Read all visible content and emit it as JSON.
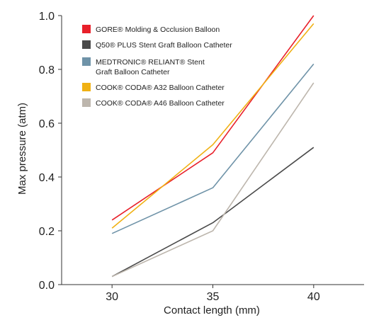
{
  "chart_data": {
    "type": "line",
    "title": "",
    "xlabel": "Contact length (mm)",
    "ylabel": "Max pressure (atm)",
    "x": [
      30,
      35,
      40
    ],
    "xlim": [
      27.5,
      42.5
    ],
    "ylim": [
      0,
      1.0
    ],
    "x_ticks": [
      "30",
      "35",
      "40"
    ],
    "y_ticks": [
      "0.0",
      "0.2",
      "0.4",
      "0.6",
      "0.8",
      "1.0"
    ],
    "grid": false,
    "legend_position": "top-left",
    "series": [
      {
        "name": "GORE® Molding & Occlusion Balloon",
        "legend_lines": [
          "GORE® Molding & Occlusion Balloon"
        ],
        "color": "#e8202a",
        "values": [
          0.24,
          0.49,
          1.0
        ]
      },
      {
        "name": "Q50® PLUS Stent Graft Balloon Catheter",
        "legend_lines": [
          "Q50® PLUS Stent Graft Balloon Catheter"
        ],
        "color": "#4a4a4a",
        "values": [
          0.03,
          0.23,
          0.51
        ]
      },
      {
        "name": "MEDTRONIC® RELIANT® Stent Graft Balloon Catheter",
        "legend_lines": [
          "MEDTRONIC® RELIANT® Stent",
          "Graft Balloon Catheter"
        ],
        "color": "#6f93a8",
        "values": [
          0.19,
          0.36,
          0.82
        ]
      },
      {
        "name": "COOK® CODA® A32 Balloon Catheter",
        "legend_lines": [
          "COOK® CODA® A32 Balloon Catheter"
        ],
        "color": "#f0b114",
        "values": [
          0.21,
          0.52,
          0.97
        ]
      },
      {
        "name": "COOK® CODA® A46 Balloon Catheter",
        "legend_lines": [
          "COOK® CODA® A46 Balloon Catheter"
        ],
        "color": "#bdb6ad",
        "values": [
          0.03,
          0.2,
          0.75
        ]
      }
    ]
  }
}
